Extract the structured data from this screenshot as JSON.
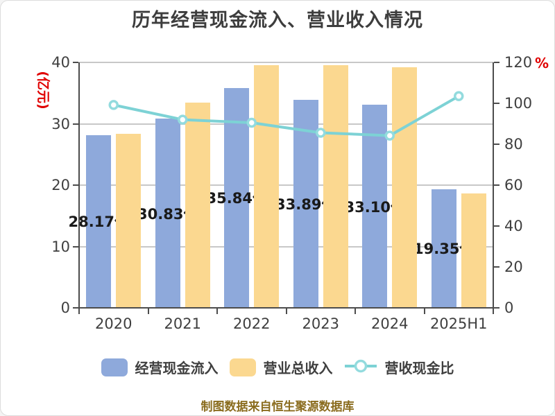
{
  "window": {
    "background": "#ffffff",
    "border_color": "#dcdcdc"
  },
  "chart_data": {
    "type": "bar",
    "title": "历年经营现金流入、营业收入情况",
    "categories": [
      "2020",
      "2021",
      "2022",
      "2023",
      "2024",
      "2025H1"
    ],
    "series": [
      {
        "name": "经营现金流入",
        "kind": "bar",
        "axis": "left",
        "color": "#8ea9db",
        "values": [
          28.17,
          30.83,
          35.84,
          33.89,
          33.1,
          19.35
        ],
        "labels": [
          "28.17亿",
          "30.83亿",
          "35.84亿",
          "33.89亿",
          "33.10亿",
          "19.35亿"
        ]
      },
      {
        "name": "营业总收入",
        "kind": "bar",
        "axis": "left",
        "color": "#fbd890",
        "values": [
          28.4,
          33.5,
          39.6,
          39.5,
          39.2,
          18.7
        ]
      },
      {
        "name": "营收现金比",
        "kind": "line",
        "axis": "right",
        "color": "#7dd2d5",
        "marker_fill": "#ffffff",
        "marker_stroke": "#93dbde",
        "values": [
          99.2,
          92.0,
          90.5,
          85.6,
          84.2,
          103.5
        ]
      }
    ],
    "left_axis": {
      "name": "(亿元)",
      "name_color": "#e00000",
      "min": 0,
      "max": 40,
      "ticks": [
        "0",
        "10",
        "20",
        "30",
        "40"
      ]
    },
    "right_axis": {
      "name": "%",
      "name_color": "#e00000",
      "min": 0,
      "max": 120,
      "ticks": [
        "0",
        "20",
        "40",
        "60",
        "80",
        "100",
        "120"
      ]
    },
    "grid": true,
    "legend_position": "bottom",
    "footer": "制图数据来自恒生聚源数据库",
    "colors": {
      "title": "#3d3d3d",
      "axis_text": "#3f3f3f",
      "axis_line": "#4c4c4c",
      "gridline": "#c8c8c8",
      "bar_label": "#1a1a1a",
      "footer": "#8a6c1e"
    }
  }
}
